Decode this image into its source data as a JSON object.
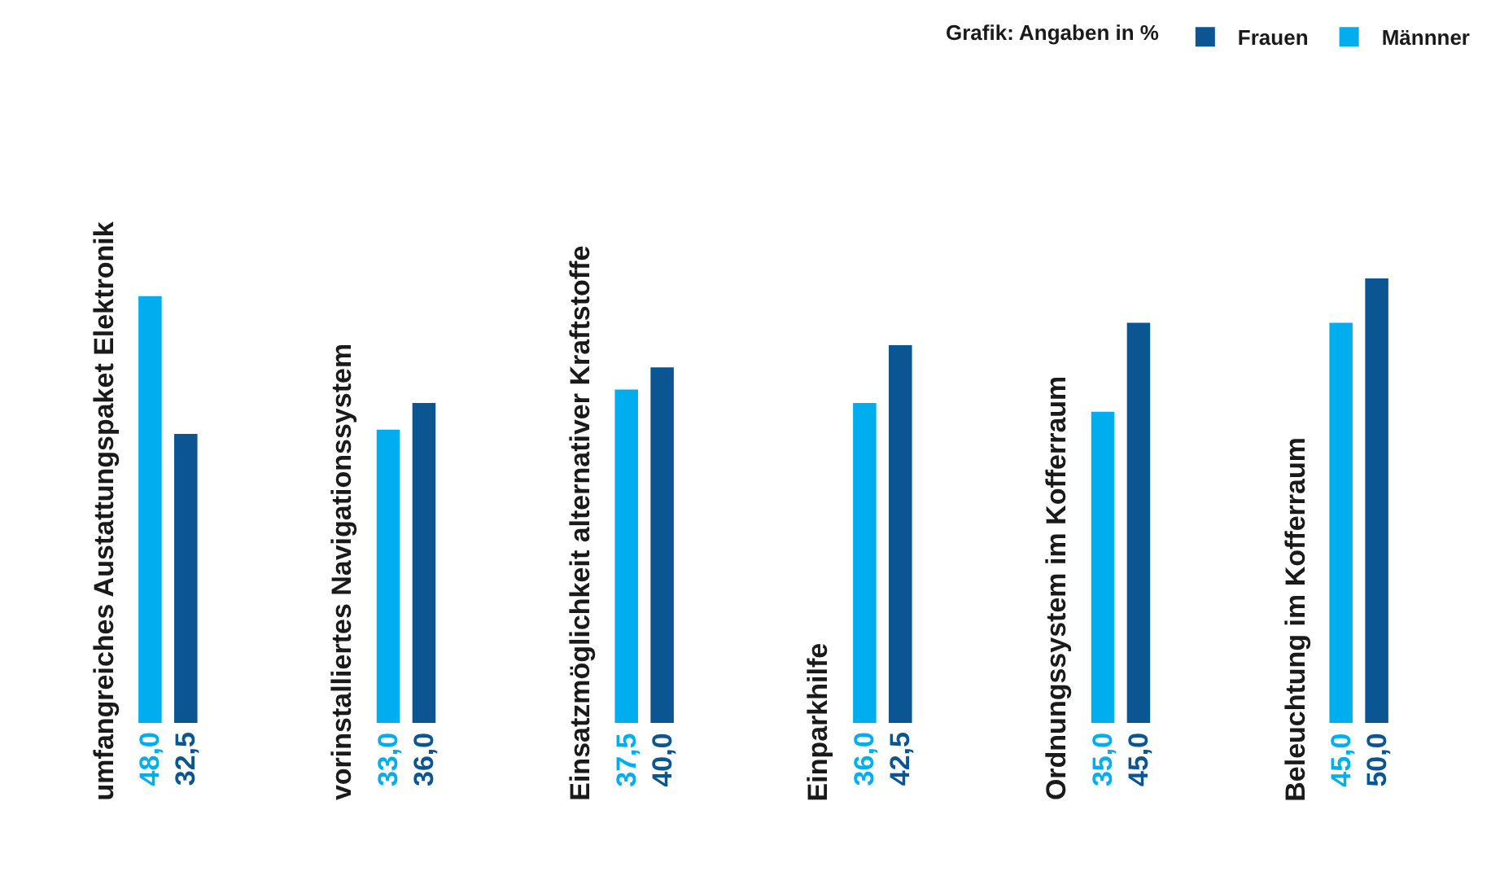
{
  "chart_data": {
    "type": "bar",
    "legend_title": "Grafik: Angaben in %",
    "legend": "top right",
    "categories": [
      "umfangreiches Austattungspaket Elektronik",
      "vorinstalliertes Navigationssystem",
      "Einsatzmöglichkeit alternativer Kraftstoffe",
      "Einparkhilfe",
      "Ordnungssystem im Kofferraum",
      "Beleuchtung im Kofferraum"
    ],
    "series": [
      {
        "name": "Männner",
        "color": "#00aeef",
        "values": [
          48.0,
          33.0,
          37.5,
          36.0,
          35.0,
          45.0
        ],
        "value_labels": [
          "48,0",
          "33,0",
          "37,5",
          "36,0",
          "35,0",
          "45,0"
        ]
      },
      {
        "name": "Frauen",
        "color": "#0a5592",
        "values": [
          32.5,
          36.0,
          40.0,
          42.5,
          45.0,
          50.0
        ],
        "value_labels": [
          "32,5",
          "36,0",
          "40,0",
          "42,5",
          "45,0",
          "50,0"
        ]
      }
    ],
    "grid": false
  }
}
